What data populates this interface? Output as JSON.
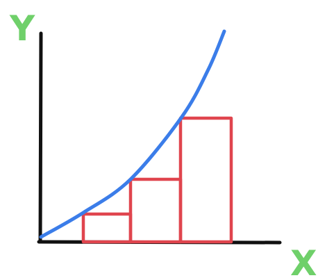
{
  "labels": {
    "y_axis": "Y",
    "x_axis": "X"
  },
  "colors": {
    "axes": "#111111",
    "curve": "#3b7de9",
    "bars": "#e0454e",
    "labels": "#6fd06a"
  },
  "chart_data": {
    "type": "bar",
    "description_free": true,
    "curve": {
      "shape": "increasing-convex",
      "x": [
        0,
        1,
        2,
        3,
        4,
        5
      ],
      "y": [
        0,
        0.8,
        1.8,
        3.0,
        4.5,
        6.5
      ]
    },
    "bars": [
      {
        "x_start": 1,
        "x_end": 2,
        "height": 0.8
      },
      {
        "x_start": 2,
        "x_end": 3,
        "height": 1.8
      },
      {
        "x_start": 3,
        "x_end": 4,
        "height": 3.0
      }
    ],
    "xlim": [
      0,
      6
    ],
    "ylim": [
      0,
      6.5
    ],
    "grid": false
  }
}
